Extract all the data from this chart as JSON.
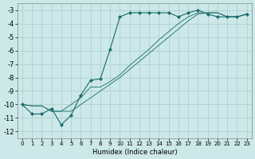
{
  "xlabel": "Humidex (Indice chaleur)",
  "background_color": "#cce8e8",
  "grid_color": "#aacccc",
  "line_color": "#1a6b6b",
  "xlim": [
    -0.5,
    23.5
  ],
  "ylim": [
    -12.5,
    -2.5
  ],
  "yticks": [
    -12,
    -11,
    -10,
    -9,
    -8,
    -7,
    -6,
    -5,
    -4,
    -3
  ],
  "xticks": [
    0,
    1,
    2,
    3,
    4,
    5,
    6,
    7,
    8,
    9,
    10,
    11,
    12,
    13,
    14,
    15,
    16,
    17,
    18,
    19,
    20,
    21,
    22,
    23
  ],
  "line1_x": [
    0,
    1,
    2,
    3,
    4,
    5,
    6,
    7,
    8,
    9,
    10,
    11,
    12,
    13,
    14,
    15,
    16,
    17,
    18,
    19,
    20,
    21,
    22,
    23
  ],
  "line1_y": [
    -10,
    -10.7,
    -10.7,
    -10.3,
    -11.5,
    -10.8,
    -9.3,
    -8.2,
    -8.1,
    -5.9,
    -3.5,
    -3.2,
    -3.2,
    -3.2,
    -3.2,
    -3.2,
    -3.5,
    -3.2,
    -3.0,
    -3.3,
    -3.5,
    -3.5,
    -3.5,
    -3.3
  ],
  "line2_x": [
    0,
    1,
    2,
    3,
    4,
    5,
    6,
    7,
    8,
    9,
    10,
    11,
    12,
    13,
    14,
    15,
    16,
    17,
    18,
    19,
    20,
    21,
    22,
    23
  ],
  "line2_y": [
    -10,
    -10.1,
    -10.1,
    -10.5,
    -10.5,
    -10.0,
    -9.5,
    -8.7,
    -8.7,
    -8.3,
    -7.8,
    -7.1,
    -6.5,
    -5.9,
    -5.2,
    -4.6,
    -4.0,
    -3.5,
    -3.2,
    -3.2,
    -3.2,
    -3.5,
    -3.5,
    -3.3
  ],
  "line3_x": [
    0,
    1,
    2,
    3,
    4,
    5,
    6,
    7,
    8,
    9,
    10,
    11,
    12,
    13,
    14,
    15,
    16,
    17,
    18,
    19,
    20,
    21,
    22,
    23
  ],
  "line3_y": [
    -10,
    -10.1,
    -10.1,
    -10.5,
    -10.5,
    -10.5,
    -10.0,
    -9.5,
    -9.0,
    -8.5,
    -8.0,
    -7.4,
    -6.8,
    -6.2,
    -5.6,
    -5.0,
    -4.4,
    -3.8,
    -3.3,
    -3.2,
    -3.2,
    -3.5,
    -3.5,
    -3.3
  ]
}
